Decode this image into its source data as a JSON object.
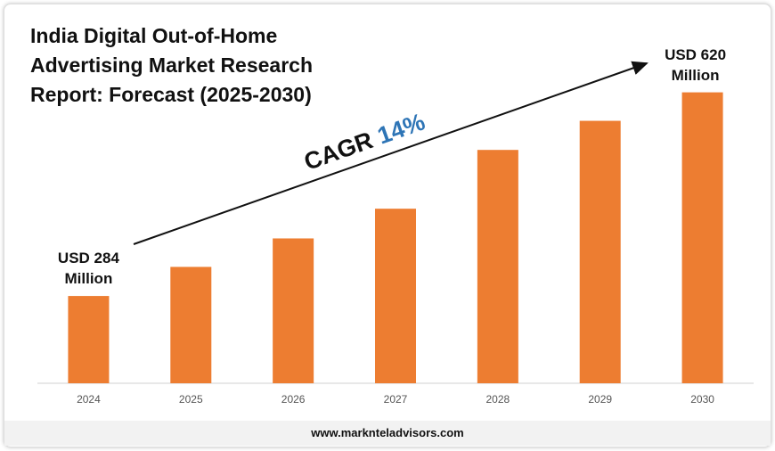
{
  "chart_data": {
    "type": "bar",
    "title": "India Digital Out-of-Home Advertising Market Research Report: Forecast (2025-2030)",
    "categories": [
      "2024",
      "2025",
      "2026",
      "2027",
      "2028",
      "2029",
      "2030"
    ],
    "values": [
      284,
      332,
      379,
      428,
      525,
      573,
      620
    ],
    "value_labels": [
      "USD 284 Million",
      null,
      null,
      null,
      null,
      null,
      "USD 620 Million"
    ],
    "color": "#ed7d31",
    "ylim": [
      140,
      640
    ],
    "annotation": {
      "label": "CAGR",
      "value": "14%"
    },
    "footer": "www.marknteladvisors.com"
  }
}
